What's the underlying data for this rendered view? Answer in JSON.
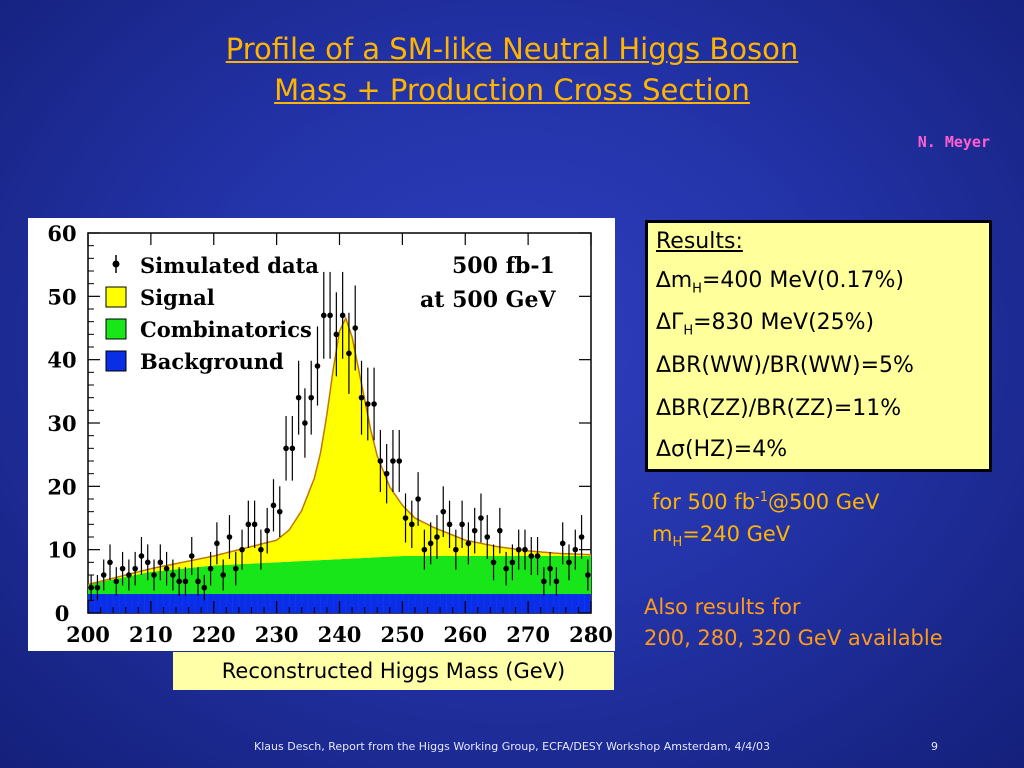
{
  "slide": {
    "title_line1": "Profile of a SM-like Neutral Higgs Boson",
    "title_line2": "Mass + Production Cross Section",
    "author": "N. Meyer",
    "x_caption": "Reconstructed Higgs Mass (GeV)",
    "footer": "Klaus Desch, Report from the Higgs Working Group, ECFA/DESY Workshop Amsterdam, 4/4/03",
    "page_number": "9"
  },
  "results": {
    "header": "Results:",
    "rows": [
      {
        "sym": "∆m",
        "sub": "H",
        "text": "=400 MeV(0.17%)"
      },
      {
        "sym": "ΔΓ",
        "sub": "H",
        "text": "=830 MeV(25%)"
      },
      {
        "sym": "",
        "sub": "",
        "text": "ΔBR(WW)/BR(WW)=5%"
      },
      {
        "sym": "",
        "sub": "",
        "text": "ΔBR(ZZ)/BR(ZZ)=11%"
      },
      {
        "sym": "",
        "sub": "",
        "text": "Δσ(HZ)=4%"
      }
    ]
  },
  "conditions": {
    "line1_a": "for 500 fb",
    "line1_sup": "-1",
    "line1_b": "@500 GeV",
    "line2_a": "m",
    "line2_sub": "H",
    "line2_b": "=240 GeV"
  },
  "also": {
    "line1": "Also results for",
    "line2": "200, 280, 320 GeV available"
  },
  "colors": {
    "signal": "#ffff00",
    "combinatorics": "#19e619",
    "background": "#0a2ee6",
    "curve": "#c07800"
  },
  "chart_data": {
    "type": "area",
    "xlabel": "Reconstructed Higgs Mass (GeV)",
    "ylabel": "",
    "xlim": [
      200,
      280
    ],
    "ylim": [
      0,
      60
    ],
    "xticks": [
      "200",
      "210",
      "220",
      "230",
      "240",
      "250",
      "260",
      "270",
      "280"
    ],
    "yticks": [
      "0",
      "10",
      "20",
      "30",
      "40",
      "50",
      "60"
    ],
    "legend": {
      "placement": "top-left",
      "entries": [
        "Simulated data",
        "Signal",
        "Combinatorics",
        "Background"
      ]
    },
    "annotations": [
      "500 fb-1",
      "at 500 GeV"
    ],
    "stacked_series": [
      {
        "name": "Background",
        "x": [
          200,
          210,
          220,
          230,
          240,
          250,
          260,
          270,
          280
        ],
        "values": [
          3,
          3,
          3,
          3,
          3,
          3,
          3,
          3,
          3
        ]
      },
      {
        "name": "Combinatorics",
        "x": [
          200,
          210,
          220,
          230,
          240,
          250,
          260,
          270,
          280
        ],
        "values": [
          1.5,
          3.5,
          4.5,
          5,
          5.5,
          6,
          6,
          6,
          6
        ]
      },
      {
        "name": "Signal",
        "x": [
          200,
          210,
          220,
          230,
          232,
          234,
          236,
          237,
          238,
          239,
          240,
          241,
          242,
          243,
          244,
          245,
          246,
          248,
          250,
          252,
          255,
          260,
          265,
          270,
          275,
          280
        ],
        "values": [
          0,
          0.5,
          1.5,
          3.5,
          5,
          8,
          13,
          17,
          23,
          30,
          36,
          38,
          35,
          30,
          25,
          20,
          16,
          11,
          8,
          6,
          4.5,
          2.5,
          1.5,
          0.8,
          0.4,
          0.2
        ]
      }
    ],
    "series": [
      {
        "name": "Simulated data",
        "x": [
          200.5,
          201.5,
          202.5,
          203.5,
          204.5,
          205.5,
          206.5,
          207.5,
          208.5,
          209.5,
          210.5,
          211.5,
          212.5,
          213.5,
          214.5,
          215.5,
          216.5,
          217.5,
          218.5,
          219.5,
          220.5,
          221.5,
          222.5,
          223.5,
          224.5,
          225.5,
          226.5,
          227.5,
          228.5,
          229.5,
          230.5,
          231.5,
          232.5,
          233.5,
          234.5,
          235.5,
          236.5,
          237.5,
          238.5,
          239.5,
          240.5,
          241.5,
          242.5,
          243.5,
          244.5,
          245.5,
          246.5,
          247.5,
          248.5,
          249.5,
          250.5,
          251.5,
          252.5,
          253.5,
          254.5,
          255.5,
          256.5,
          257.5,
          258.5,
          259.5,
          260.5,
          261.5,
          262.5,
          263.5,
          264.5,
          265.5,
          266.5,
          267.5,
          268.5,
          269.5,
          270.5,
          271.5,
          272.5,
          273.5,
          274.5,
          275.5,
          276.5,
          277.5,
          278.5,
          279.5
        ],
        "values": [
          4,
          4,
          6,
          8,
          5,
          7,
          6,
          7,
          9,
          8,
          6,
          8,
          7,
          6,
          5,
          5,
          9,
          5,
          4,
          7,
          11,
          6,
          12,
          7,
          10,
          14,
          14,
          10,
          13,
          17,
          16,
          26,
          26,
          34,
          30,
          34,
          39,
          47,
          47,
          44,
          47,
          41,
          45,
          34,
          33,
          33,
          24,
          22,
          24,
          24,
          15,
          14,
          18,
          10,
          11,
          12,
          16,
          14,
          10,
          14,
          11,
          13,
          15,
          12,
          8,
          13,
          7,
          8,
          10,
          10,
          9,
          9,
          5,
          7,
          5,
          11,
          8,
          10,
          12,
          6
        ]
      }
    ]
  }
}
